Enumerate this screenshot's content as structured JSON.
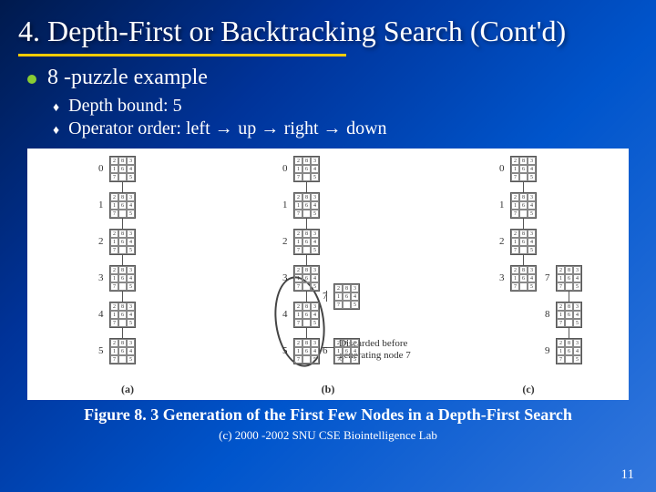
{
  "title": "4. Depth-First or Backtracking Search (Cont'd)",
  "main_bullet": "8 -puzzle example",
  "sub_bullets": {
    "depth": "Depth bound: 5",
    "order_parts": {
      "prefix": "Operator order: left",
      "a": "up",
      "b": "right",
      "c": "down"
    }
  },
  "caption": "Figure 8. 3 Generation of the First Few Nodes in a Depth-First Search",
  "footer": "(c) 2000 -2002 SNU CSE Biointelligence Lab",
  "pagenum": "11",
  "panel_labels": {
    "a": "(a)",
    "b": "(b)",
    "c": "(c)"
  },
  "annotation": {
    "line1": "Discarded before",
    "line2": "generating node 7"
  },
  "node_labels": [
    "0",
    "1",
    "2",
    "3",
    "4",
    "5",
    "6",
    "7",
    "8",
    "9"
  ],
  "grid_values": [
    "2",
    "8",
    "3",
    "1",
    "6",
    "4",
    "7",
    "",
    "5"
  ],
  "style": {
    "title_fontsize": 32,
    "main_fontsize": 24,
    "sub_fontsize": 20,
    "caption_fontsize": 18,
    "footer_fontsize": 13,
    "underline_color": "#ffcc00",
    "bullet_color": "#88cc33",
    "background_gradient": [
      "#001a4d",
      "#003399",
      "#0055cc",
      "#3377dd"
    ],
    "figure_bg": "#ffffff",
    "text_color": "#ffffff"
  }
}
